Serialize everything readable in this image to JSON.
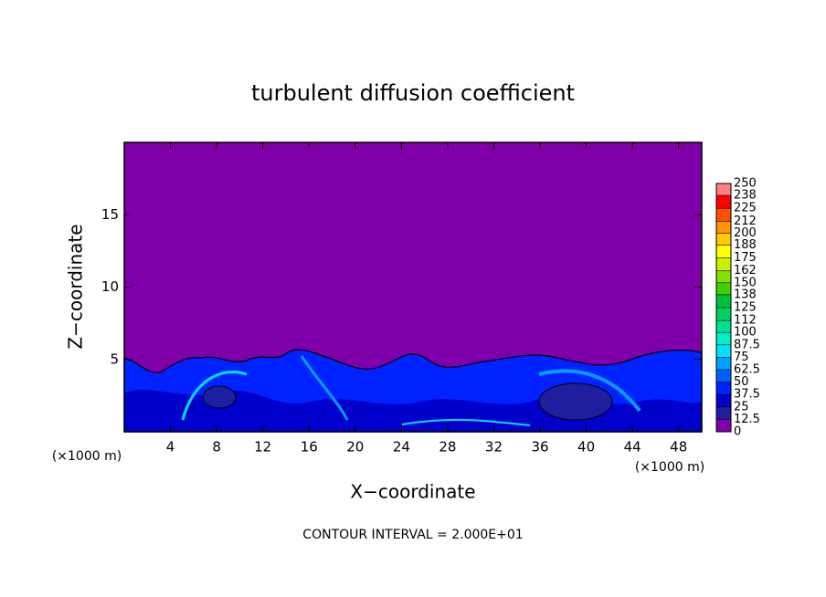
{
  "chart_data": {
    "type": "contour",
    "title": "turbulent diffusion coefficient",
    "x_label": "X−coordinate",
    "y_label": "Z−coordinate",
    "x_unit": "(×1000 m)",
    "y_unit": "(×1000 m)",
    "footer": "CONTOUR INTERVAL = 2.000E+01",
    "xlim": [
      0,
      50
    ],
    "xticks": [
      4,
      8,
      12,
      16,
      20,
      24,
      28,
      32,
      36,
      40,
      44,
      48
    ],
    "ylim": [
      0,
      20
    ],
    "yticks": [
      5,
      10,
      15
    ],
    "levels": [
      0,
      12.5,
      25,
      37.5,
      50,
      62.5,
      75,
      87.5,
      100,
      112,
      125,
      138,
      150,
      162,
      175,
      188,
      200,
      212,
      225,
      238,
      250
    ],
    "colors": [
      "#7f00aa",
      "#1e1e9e",
      "#0000cc",
      "#0022ff",
      "#0060ff",
      "#00a0ff",
      "#00e0ff",
      "#00f0c8",
      "#00e090",
      "#00d060",
      "#00c040",
      "#40d000",
      "#80e000",
      "#c8f000",
      "#ffff00",
      "#ffc800",
      "#ff9600",
      "#ff5000",
      "#ff0000",
      "#ff8080"
    ]
  }
}
